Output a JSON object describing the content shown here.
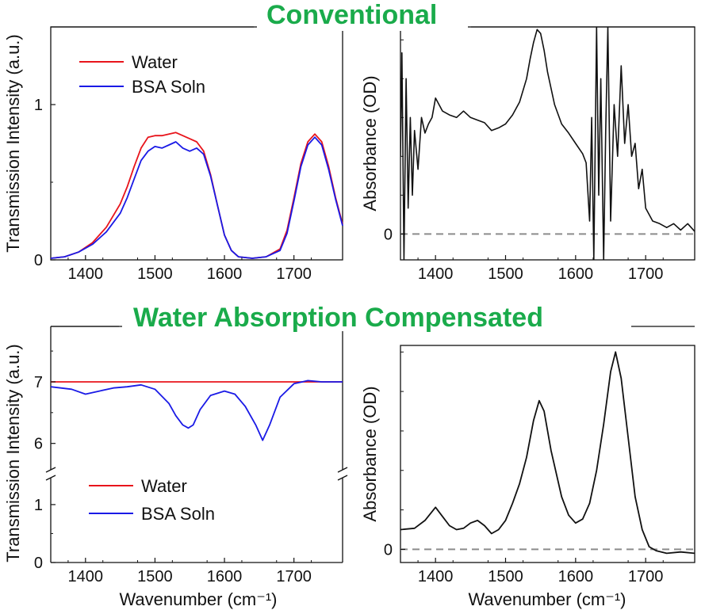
{
  "headings": {
    "top": "Conventional",
    "bottom": "Water Absorption Compensated"
  },
  "colors": {
    "heading": "#1aab4b",
    "water": "#e8141b",
    "bsa": "#1a1ae6",
    "absorbance": "#111111",
    "zero_line": "#8c8c8c"
  },
  "chart_data": [
    {
      "type": "line",
      "panel": "top-left",
      "ylabel": "Transmission Intensity (a.u.)",
      "xlabel": "",
      "xlim": [
        1350,
        1770
      ],
      "ylim": [
        0,
        1.5
      ],
      "xticks": [
        "1400",
        "1500",
        "1600",
        "1700"
      ],
      "yticks": [
        "0",
        "1"
      ],
      "legend_position": "top-left",
      "series": [
        {
          "name": "Water",
          "color": "#e8141b",
          "x": [
            1350,
            1370,
            1390,
            1410,
            1430,
            1450,
            1460,
            1470,
            1480,
            1490,
            1500,
            1510,
            1520,
            1530,
            1540,
            1550,
            1560,
            1570,
            1580,
            1590,
            1600,
            1610,
            1620,
            1640,
            1660,
            1680,
            1690,
            1700,
            1710,
            1720,
            1730,
            1740,
            1750,
            1760,
            1770
          ],
          "y": [
            0.01,
            0.02,
            0.05,
            0.11,
            0.21,
            0.36,
            0.47,
            0.6,
            0.72,
            0.79,
            0.8,
            0.8,
            0.81,
            0.82,
            0.8,
            0.78,
            0.76,
            0.7,
            0.55,
            0.35,
            0.16,
            0.06,
            0.02,
            0.01,
            0.02,
            0.07,
            0.19,
            0.4,
            0.62,
            0.76,
            0.81,
            0.76,
            0.6,
            0.4,
            0.23
          ]
        },
        {
          "name": "BSA Soln",
          "color": "#1a1ae6",
          "x": [
            1350,
            1370,
            1390,
            1410,
            1430,
            1450,
            1460,
            1470,
            1480,
            1490,
            1500,
            1510,
            1520,
            1530,
            1540,
            1550,
            1560,
            1570,
            1580,
            1590,
            1600,
            1610,
            1620,
            1640,
            1660,
            1680,
            1690,
            1700,
            1710,
            1720,
            1730,
            1740,
            1750,
            1760,
            1770
          ],
          "y": [
            0.01,
            0.02,
            0.05,
            0.1,
            0.18,
            0.3,
            0.4,
            0.52,
            0.64,
            0.7,
            0.73,
            0.72,
            0.74,
            0.76,
            0.72,
            0.7,
            0.72,
            0.68,
            0.54,
            0.35,
            0.16,
            0.06,
            0.02,
            0.01,
            0.02,
            0.06,
            0.17,
            0.38,
            0.6,
            0.74,
            0.79,
            0.74,
            0.58,
            0.39,
            0.22
          ]
        }
      ]
    },
    {
      "type": "line",
      "panel": "top-right",
      "ylabel": "Absorbance (OD)",
      "xlabel": "",
      "xlim": [
        1350,
        1770
      ],
      "ylim": [
        -0.2,
        1.6
      ],
      "xticks": [
        "1400",
        "1500",
        "1600",
        "1700"
      ],
      "yticks": [
        "0"
      ],
      "zero_line": "dashed",
      "series": [
        {
          "name": "",
          "color": "#111111",
          "x": [
            1350,
            1352,
            1355,
            1358,
            1361,
            1364,
            1367,
            1370,
            1375,
            1380,
            1385,
            1390,
            1395,
            1400,
            1410,
            1420,
            1430,
            1440,
            1450,
            1460,
            1470,
            1480,
            1490,
            1500,
            1510,
            1520,
            1530,
            1535,
            1540,
            1545,
            1550,
            1555,
            1560,
            1570,
            1580,
            1590,
            1600,
            1610,
            1615,
            1620,
            1623,
            1626,
            1630,
            1633,
            1636,
            1640,
            1643,
            1646,
            1650,
            1655,
            1660,
            1665,
            1670,
            1675,
            1680,
            1685,
            1690,
            1695,
            1700,
            1710,
            1720,
            1730,
            1740,
            1750,
            1760,
            1770
          ],
          "y": [
            0.6,
            1.4,
            -0.2,
            1.2,
            0.2,
            0.9,
            0.3,
            0.8,
            0.5,
            0.9,
            0.78,
            0.85,
            0.9,
            1.05,
            0.95,
            0.92,
            0.9,
            0.95,
            0.9,
            0.88,
            0.86,
            0.8,
            0.82,
            0.85,
            0.92,
            1.02,
            1.2,
            1.35,
            1.48,
            1.58,
            1.55,
            1.42,
            1.25,
            1.0,
            0.85,
            0.78,
            0.7,
            0.62,
            0.55,
            0.1,
            0.9,
            -0.2,
            1.6,
            0.3,
            1.2,
            -0.2,
            0.8,
            1.6,
            0.1,
            1.0,
            0.6,
            1.3,
            0.7,
            1.0,
            0.6,
            0.7,
            0.35,
            0.5,
            0.2,
            0.1,
            0.08,
            0.05,
            0.08,
            0.03,
            0.08,
            0.02
          ]
        }
      ]
    },
    {
      "type": "line",
      "panel": "bottom-left",
      "ylabel": "Transmission Intensity (a.u.)",
      "xlabel": "Wavenumber (cm⁻¹)",
      "xlim": [
        1350,
        1770
      ],
      "y_axis_break": "between 1 and 6",
      "upper_ylim": [
        5.7,
        7.9
      ],
      "lower_ylim": [
        0,
        1.45
      ],
      "xticks": [
        "1400",
        "1500",
        "1600",
        "1700"
      ],
      "yticks": [
        "0",
        "1",
        "6",
        "7"
      ],
      "legend_position": "bottom-left",
      "series": [
        {
          "name": "Water",
          "color": "#e8141b",
          "x": [
            1350,
            1400,
            1450,
            1500,
            1550,
            1600,
            1650,
            1700,
            1750,
            1770
          ],
          "y": [
            7.0,
            7.0,
            7.0,
            7.0,
            7.0,
            7.0,
            7.0,
            7.0,
            7.0,
            7.0
          ]
        },
        {
          "name": "BSA Soln",
          "color": "#1a1ae6",
          "x": [
            1350,
            1380,
            1400,
            1420,
            1440,
            1460,
            1480,
            1500,
            1520,
            1530,
            1540,
            1548,
            1555,
            1565,
            1580,
            1600,
            1615,
            1630,
            1645,
            1655,
            1665,
            1680,
            1700,
            1720,
            1740,
            1770
          ],
          "y": [
            6.92,
            6.88,
            6.8,
            6.85,
            6.9,
            6.92,
            6.95,
            6.88,
            6.65,
            6.45,
            6.3,
            6.25,
            6.3,
            6.55,
            6.78,
            6.85,
            6.8,
            6.6,
            6.3,
            6.05,
            6.3,
            6.75,
            6.97,
            7.02,
            7.0,
            7.0
          ]
        }
      ]
    },
    {
      "type": "line",
      "panel": "bottom-right",
      "ylabel": "Absorbance (OD)",
      "xlabel": "Wavenumber (cm⁻¹)",
      "xlim": [
        1350,
        1770
      ],
      "ylim": [
        -0.1,
        1.55
      ],
      "xticks": [
        "1400",
        "1500",
        "1600",
        "1700"
      ],
      "yticks": [
        "0"
      ],
      "zero_line": "dashed",
      "series": [
        {
          "name": "",
          "color": "#111111",
          "x": [
            1350,
            1370,
            1385,
            1400,
            1410,
            1420,
            1430,
            1440,
            1450,
            1460,
            1470,
            1480,
            1490,
            1500,
            1510,
            1520,
            1530,
            1540,
            1548,
            1555,
            1565,
            1580,
            1590,
            1600,
            1610,
            1620,
            1630,
            1640,
            1650,
            1657,
            1665,
            1675,
            1685,
            1695,
            1705,
            1715,
            1730,
            1750,
            1770
          ],
          "y": [
            0.15,
            0.16,
            0.22,
            0.32,
            0.25,
            0.18,
            0.15,
            0.16,
            0.2,
            0.22,
            0.18,
            0.12,
            0.15,
            0.22,
            0.35,
            0.5,
            0.7,
            0.98,
            1.13,
            1.05,
            0.75,
            0.4,
            0.26,
            0.2,
            0.23,
            0.35,
            0.6,
            0.95,
            1.35,
            1.5,
            1.3,
            0.85,
            0.4,
            0.15,
            0.02,
            -0.01,
            -0.03,
            -0.02,
            -0.03
          ]
        }
      ]
    }
  ]
}
